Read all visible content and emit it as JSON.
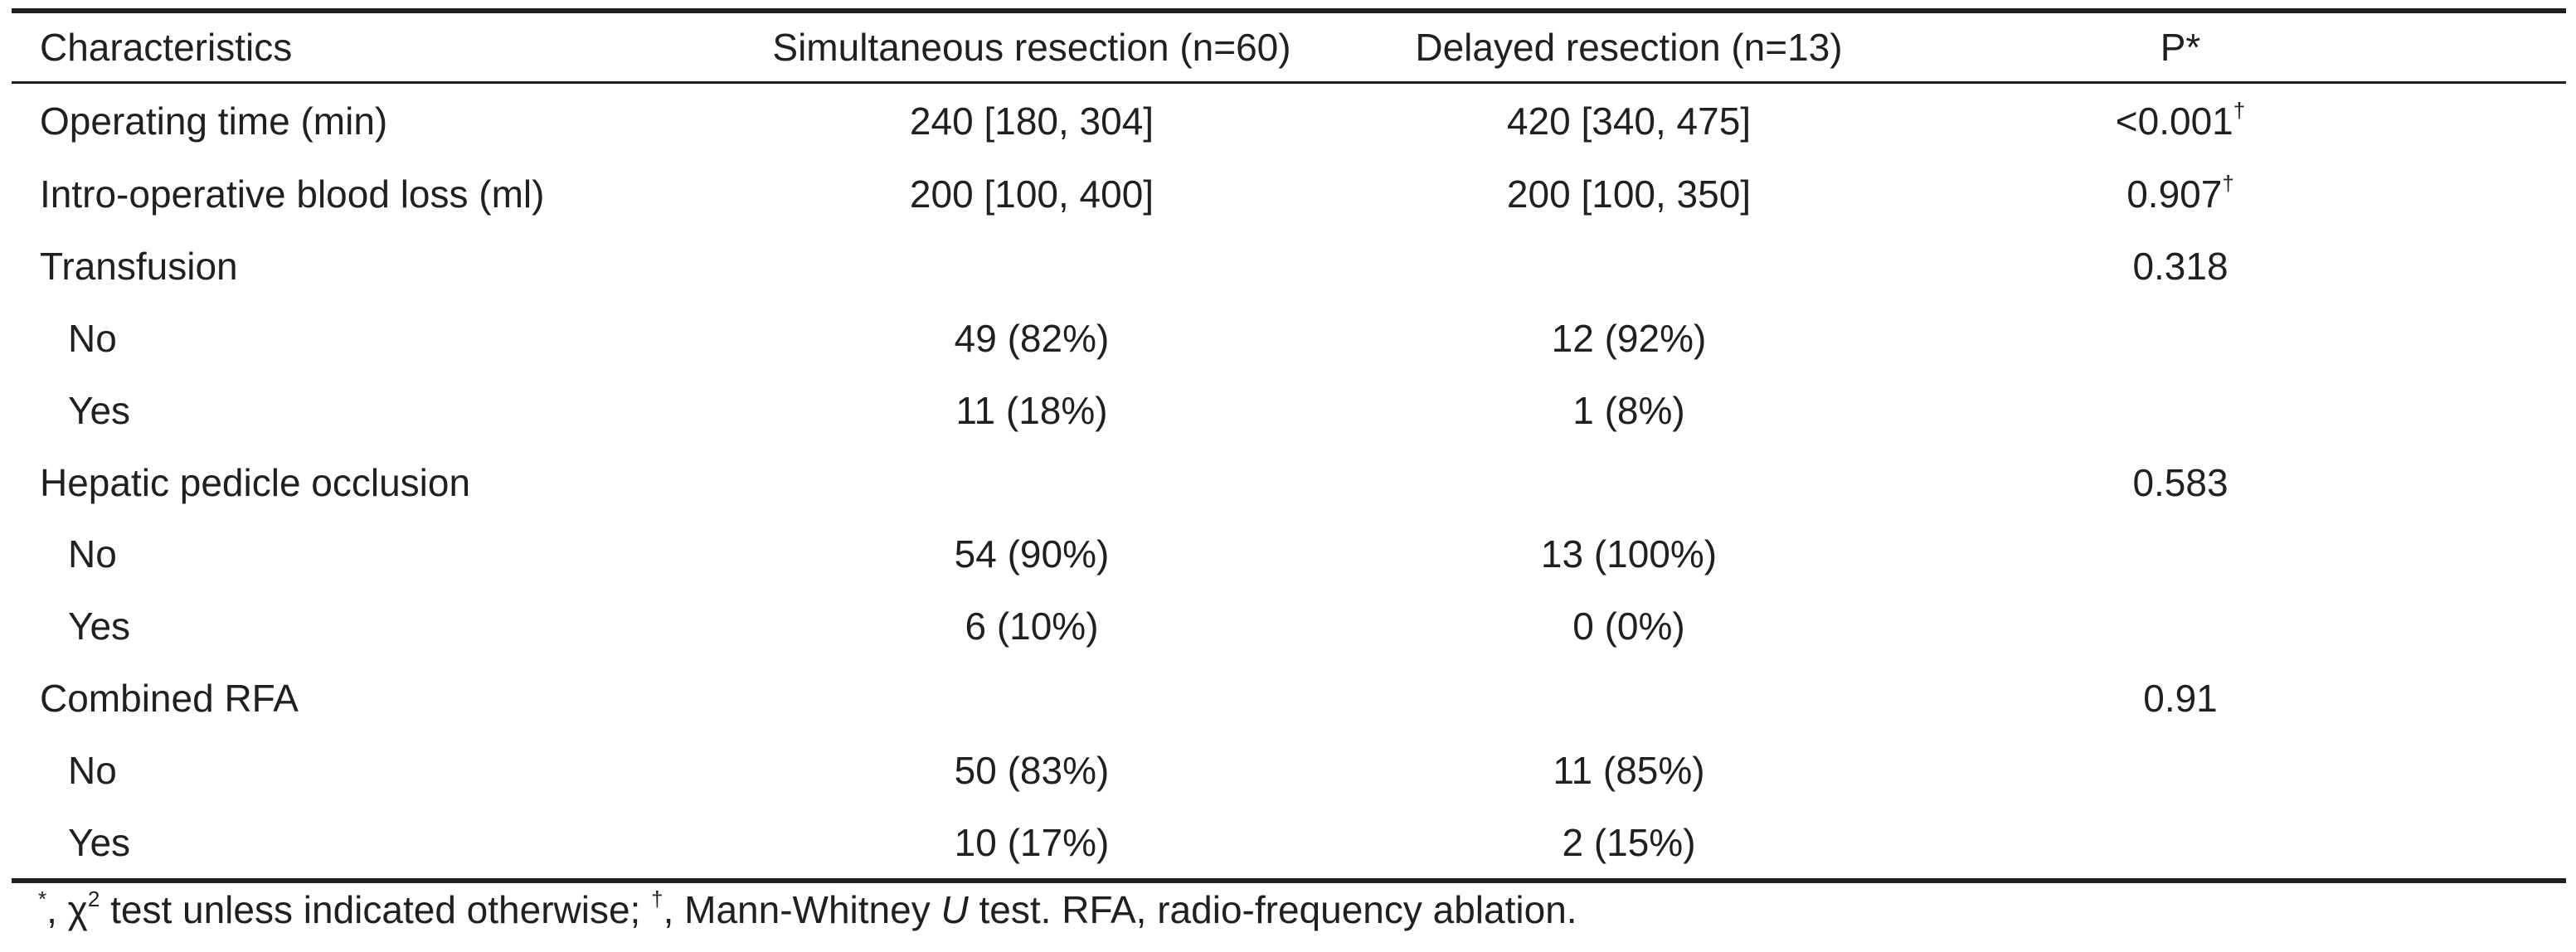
{
  "table": {
    "headers": {
      "characteristics": "Characteristics",
      "simultaneous": "Simultaneous resection (n=60)",
      "delayed": "Delayed resection (n=13)",
      "p": "P*"
    },
    "rows": [
      {
        "label": "Operating time (min)",
        "simultaneous": "240 [180, 304]",
        "delayed": "420 [340, 475]",
        "p": "<0.001",
        "p_sup": "†",
        "indent": false
      },
      {
        "label": "Intro-operative blood loss (ml)",
        "simultaneous": "200 [100, 400]",
        "delayed": "200 [100, 350]",
        "p": "0.907",
        "p_sup": "†",
        "indent": false
      },
      {
        "label": "Transfusion",
        "simultaneous": "",
        "delayed": "",
        "p": "0.318",
        "p_sup": "",
        "indent": false
      },
      {
        "label": "No",
        "simultaneous": "49 (82%)",
        "delayed": "12 (92%)",
        "p": "",
        "p_sup": "",
        "indent": true
      },
      {
        "label": "Yes",
        "simultaneous": "11 (18%)",
        "delayed": "1 (8%)",
        "p": "",
        "p_sup": "",
        "indent": true
      },
      {
        "label": "Hepatic pedicle occlusion",
        "simultaneous": "",
        "delayed": "",
        "p": "0.583",
        "p_sup": "",
        "indent": false
      },
      {
        "label": "No",
        "simultaneous": "54 (90%)",
        "delayed": "13 (100%)",
        "p": "",
        "p_sup": "",
        "indent": true
      },
      {
        "label": "Yes",
        "simultaneous": "6 (10%)",
        "delayed": "0 (0%)",
        "p": "",
        "p_sup": "",
        "indent": true
      },
      {
        "label": "Combined RFA",
        "simultaneous": "",
        "delayed": "",
        "p": "0.91",
        "p_sup": "",
        "indent": false
      },
      {
        "label": "No",
        "simultaneous": "50 (83%)",
        "delayed": "11 (85%)",
        "p": "",
        "p_sup": "",
        "indent": true
      },
      {
        "label": "Yes",
        "simultaneous": "10 (17%)",
        "delayed": "2 (15%)",
        "p": "",
        "p_sup": "",
        "indent": true
      }
    ]
  },
  "footnote": {
    "star": "*",
    "chi": ", χ",
    "chi_sup": "2",
    "part1": " test unless indicated otherwise; ",
    "dagger": "†",
    "part2": ", Mann-Whitney ",
    "u": "U",
    "part3": " test. RFA, radio-frequency ablation."
  }
}
